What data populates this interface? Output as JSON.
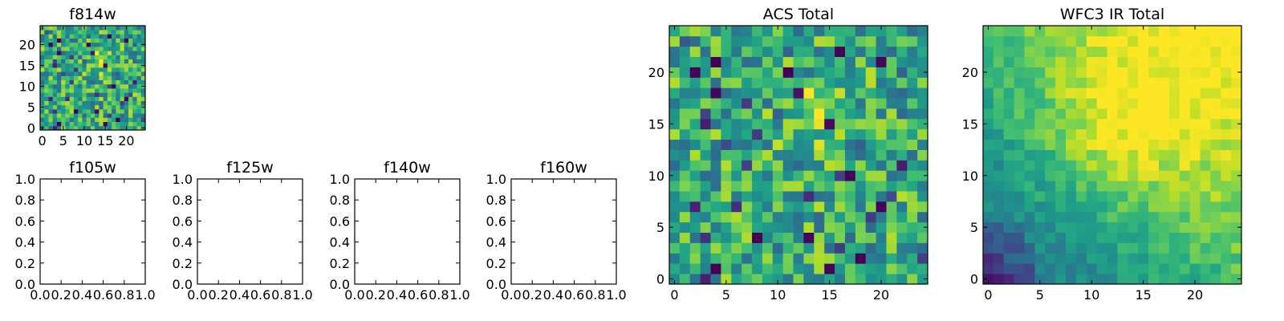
{
  "chart_data": [
    {
      "id": "f814w",
      "type": "heatmap",
      "title": "f814w",
      "colormap": "viridis",
      "grid_size": 25,
      "seed": 7,
      "pattern": "noise_with_bright_spot",
      "xticks": [
        "0",
        "5",
        "10",
        "15",
        "20"
      ],
      "yticks": [
        "0",
        "5",
        "10",
        "15",
        "20"
      ]
    },
    {
      "id": "f105w",
      "type": "empty",
      "title": "f105w",
      "xticks": [
        "0.0",
        "0.2",
        "0.4",
        "0.6",
        "0.8",
        "1.0"
      ],
      "yticks": [
        "0.0",
        "0.2",
        "0.4",
        "0.6",
        "0.8",
        "1.0"
      ]
    },
    {
      "id": "f125w",
      "type": "empty",
      "title": "f125w",
      "xticks": [
        "0.0",
        "0.2",
        "0.4",
        "0.6",
        "0.8",
        "1.0"
      ],
      "yticks": [
        "0.0",
        "0.2",
        "0.4",
        "0.6",
        "0.8",
        "1.0"
      ]
    },
    {
      "id": "f140w",
      "type": "empty",
      "title": "f140w",
      "xticks": [
        "0.0",
        "0.2",
        "0.4",
        "0.6",
        "0.8",
        "1.0"
      ],
      "yticks": [
        "0.0",
        "0.2",
        "0.4",
        "0.6",
        "0.8",
        "1.0"
      ]
    },
    {
      "id": "f160w",
      "type": "empty",
      "title": "f160w",
      "xticks": [
        "0.0",
        "0.2",
        "0.4",
        "0.6",
        "0.8",
        "1.0"
      ],
      "yticks": [
        "0.0",
        "0.2",
        "0.4",
        "0.6",
        "0.8",
        "1.0"
      ]
    },
    {
      "id": "acs-total",
      "type": "heatmap",
      "title": "ACS Total",
      "colormap": "viridis",
      "grid_size": 25,
      "seed": 7,
      "pattern": "noise_with_bright_spot",
      "xticks": [
        "0",
        "5",
        "10",
        "15",
        "20"
      ],
      "yticks": [
        "0",
        "5",
        "10",
        "15",
        "20"
      ]
    },
    {
      "id": "wfc3-ir-total",
      "type": "heatmap",
      "title": "WFC3 IR Total",
      "colormap": "viridis",
      "grid_size": 25,
      "seed": 21,
      "pattern": "diagonal_gradient_dark_lower_left",
      "xticks": [
        "0",
        "5",
        "10",
        "15",
        "20"
      ],
      "yticks": [
        "0",
        "5",
        "10",
        "15",
        "20"
      ]
    }
  ]
}
